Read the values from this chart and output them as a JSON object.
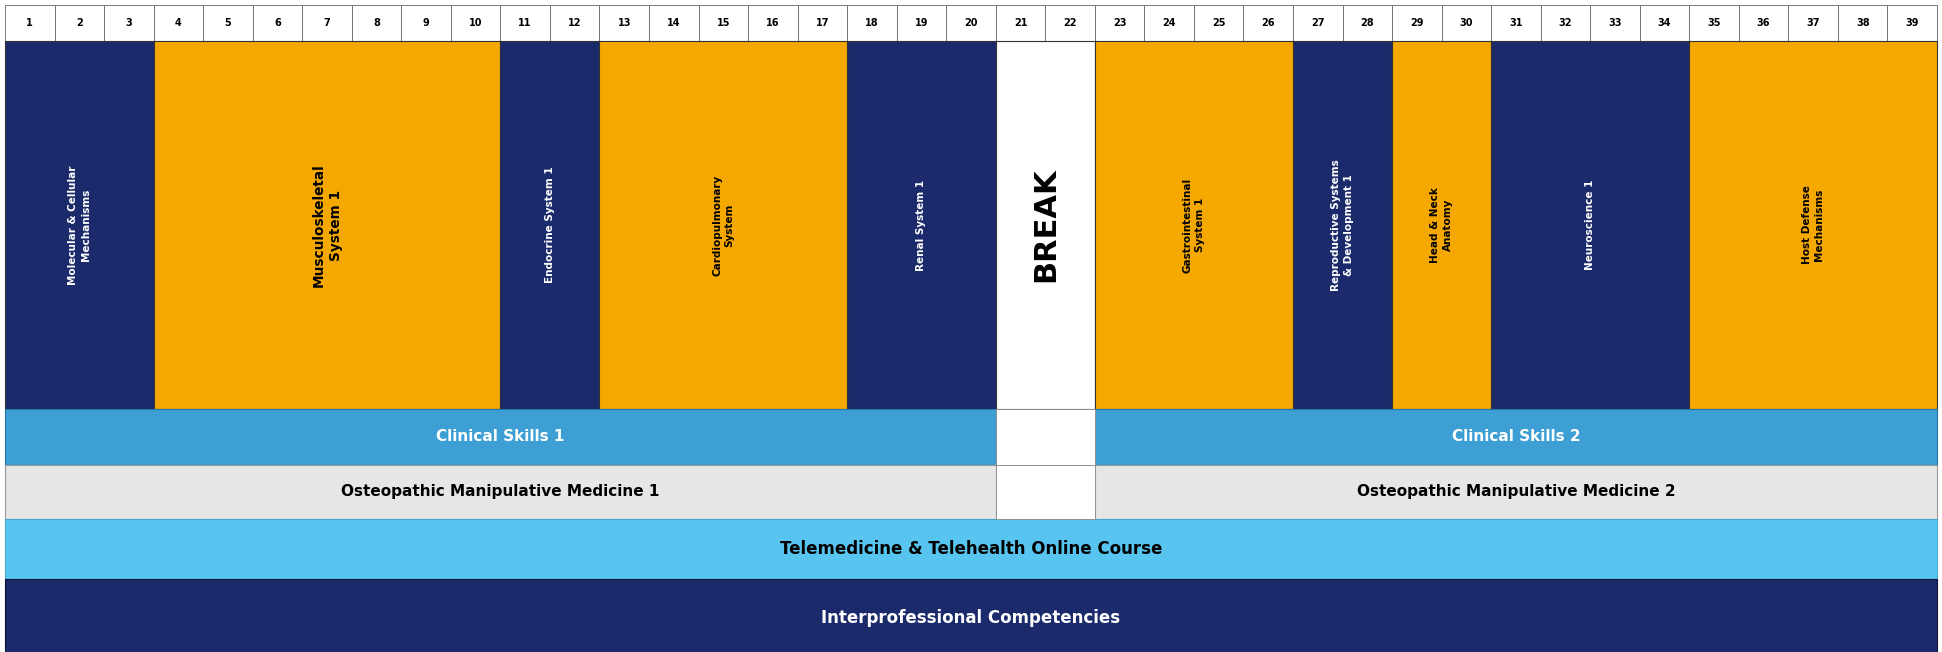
{
  "weeks": 39,
  "colors": {
    "dark_blue": "#1B2A6B",
    "gold": "#F5A800",
    "light_blue": "#3E9FD4",
    "lighter_blue": "#57C5F0",
    "white": "#FFFFFF",
    "light_gray": "#E6E6E6",
    "border_dark": "#333333"
  },
  "blocks": [
    {
      "label": "Molecular & Cellular\nMechanisms",
      "start": 1,
      "end": 3,
      "color": "dark_blue",
      "text_color": "white"
    },
    {
      "label": "Musculoskeletal\nSystem 1",
      "start": 4,
      "end": 10,
      "color": "gold",
      "text_color": "black"
    },
    {
      "label": "Endocrine System 1",
      "start": 11,
      "end": 12,
      "color": "dark_blue",
      "text_color": "white"
    },
    {
      "label": "Cardiopulmonary\nSystem",
      "start": 13,
      "end": 17,
      "color": "gold",
      "text_color": "black"
    },
    {
      "label": "Renal System 1",
      "start": 18,
      "end": 20,
      "color": "dark_blue",
      "text_color": "white"
    },
    {
      "label": "BREAK",
      "start": 21,
      "end": 22,
      "color": "white",
      "text_color": "black"
    },
    {
      "label": "Gastrointestinal\nSystem 1",
      "start": 23,
      "end": 26,
      "color": "gold",
      "text_color": "black"
    },
    {
      "label": "Reproductive Systems\n& Development 1",
      "start": 27,
      "end": 28,
      "color": "dark_blue",
      "text_color": "white"
    },
    {
      "label": "Head & Neck\nAnatomy",
      "start": 29,
      "end": 30,
      "color": "gold",
      "text_color": "black"
    },
    {
      "label": "Neuroscience 1",
      "start": 31,
      "end": 34,
      "color": "dark_blue",
      "text_color": "white"
    },
    {
      "label": "Host Defense\nMechanisms",
      "start": 35,
      "end": 39,
      "color": "gold",
      "text_color": "black"
    }
  ],
  "clinical_skills": [
    {
      "label": "Clinical Skills 1",
      "start": 1,
      "end": 20,
      "color": "light_blue",
      "text_color": "white"
    },
    {
      "label": "Clinical Skills 2",
      "start": 23,
      "end": 39,
      "color": "light_blue",
      "text_color": "white"
    }
  ],
  "omm": [
    {
      "label": "Osteopathic Manipulative Medicine 1",
      "start": 1,
      "end": 20,
      "color": "light_gray",
      "text_color": "black"
    },
    {
      "label": "Osteopathic Manipulative Medicine 2",
      "start": 23,
      "end": 39,
      "color": "light_gray",
      "text_color": "black"
    }
  ],
  "telemedicine": {
    "label": "Telemedicine & Telehealth Online Course",
    "start": 1,
    "end": 39,
    "color": "lighter_blue",
    "text_color": "black"
  },
  "interprofessional": {
    "label": "Interprofessional Competencies",
    "start": 1,
    "end": 39,
    "color": "dark_blue",
    "text_color": "white"
  },
  "row_heights_frac": {
    "header": 0.055,
    "main": 0.565,
    "clinical": 0.085,
    "omm": 0.083,
    "tele": 0.092,
    "inter": 0.12
  },
  "figsize": [
    19.42,
    6.52
  ],
  "dpi": 100
}
